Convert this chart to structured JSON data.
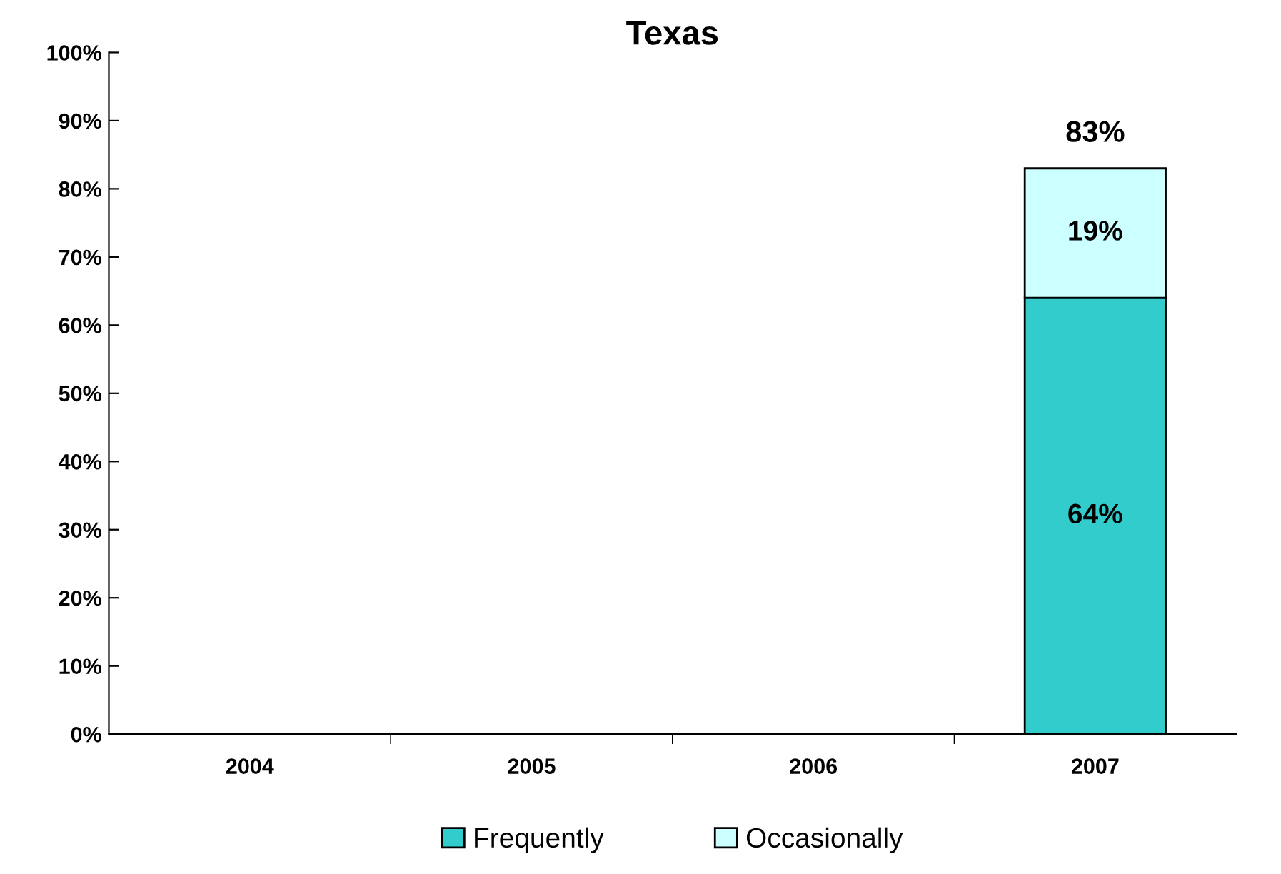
{
  "chart_data": {
    "type": "bar",
    "title": "Texas",
    "stacked": true,
    "categories": [
      "2004",
      "2005",
      "2006",
      "2007"
    ],
    "series": [
      {
        "name": "Frequently",
        "color": "#33cccc",
        "values": [
          null,
          null,
          null,
          64
        ],
        "value_labels": [
          null,
          null,
          null,
          "64%"
        ]
      },
      {
        "name": "Occasionally",
        "color": "#ccffff",
        "values": [
          null,
          null,
          null,
          19
        ],
        "value_labels": [
          null,
          null,
          null,
          "19%"
        ]
      }
    ],
    "totals": [
      null,
      null,
      null,
      "83%"
    ],
    "ylim": [
      0,
      100
    ],
    "yticks": [
      {
        "value": 0,
        "label": "0%"
      },
      {
        "value": 10,
        "label": "10%"
      },
      {
        "value": 20,
        "label": "20%"
      },
      {
        "value": 30,
        "label": "30%"
      },
      {
        "value": 40,
        "label": "40%"
      },
      {
        "value": 50,
        "label": "50%"
      },
      {
        "value": 60,
        "label": "60%"
      },
      {
        "value": 70,
        "label": "70%"
      },
      {
        "value": 80,
        "label": "80%"
      },
      {
        "value": 90,
        "label": "90%"
      },
      {
        "value": 100,
        "label": "100%"
      }
    ],
    "grid": false,
    "legend": "bottom"
  }
}
